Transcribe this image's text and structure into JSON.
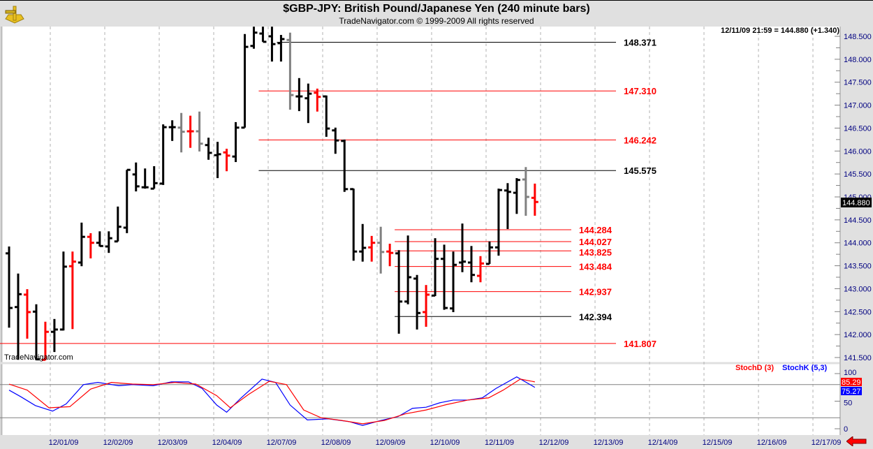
{
  "header": {
    "title": "$GBP-JPY:  British Pound/Japanese Yen  (240 minute bars)",
    "subtitle": "TradeNavigator.com © 1999-2009 All rights reserved",
    "logo": "sextant-logo"
  },
  "readout": "12/11/09 21:59 = 144.880 (+1.340)",
  "watermark": "TradeNavigator.com",
  "last_price_label": "144.880",
  "colors": {
    "up": "#000000",
    "red": "#ff0000",
    "gray": "#808080",
    "stochD": "#ff0000",
    "stochK": "#0000ff",
    "axis_text": "#000080"
  },
  "chart_data": [
    {
      "type": "ohlc",
      "title": "$GBP-JPY",
      "ylim": [
        141.5,
        148.5
      ],
      "yticks": [
        "148.500",
        "148.000",
        "147.500",
        "147.000",
        "146.500",
        "146.000",
        "145.500",
        "145.000",
        "144.500",
        "144.000",
        "143.500",
        "143.000",
        "142.500",
        "142.000",
        "141.500"
      ],
      "xticks": [
        "12/01/09",
        "12/02/09",
        "12/03/09",
        "12/04/09",
        "12/07/09",
        "12/08/09",
        "12/09/09",
        "12/10/09",
        "12/11/09",
        "12/12/09",
        "12/13/09",
        "12/14/09",
        "12/15/09",
        "12/16/09",
        "12/17/09"
      ],
      "bars_per_day": 6,
      "bars": [
        [
          143.77,
          143.92,
          142.15,
          142.58,
          "b"
        ],
        [
          142.6,
          143.33,
          141.45,
          142.88,
          "b"
        ],
        [
          142.87,
          142.99,
          141.91,
          142.49,
          "r"
        ],
        [
          142.5,
          142.66,
          141.44,
          141.46,
          "b"
        ],
        [
          141.45,
          142.28,
          141.44,
          142.06,
          "r"
        ],
        [
          142.06,
          142.34,
          141.62,
          142.11,
          "b"
        ],
        [
          142.11,
          143.81,
          142.09,
          143.48,
          "b"
        ],
        [
          143.49,
          143.81,
          142.12,
          143.59,
          "r"
        ],
        [
          143.57,
          144.44,
          143.49,
          144.13,
          "b"
        ],
        [
          144.13,
          144.21,
          143.66,
          144.0,
          "r"
        ],
        [
          144.0,
          144.25,
          143.92,
          143.93,
          "b"
        ],
        [
          143.92,
          144.25,
          143.78,
          144.1,
          "b"
        ],
        [
          144.03,
          144.79,
          144.03,
          144.35,
          "b"
        ],
        [
          144.33,
          145.59,
          144.21,
          145.59,
          "b"
        ],
        [
          145.49,
          145.75,
          145.12,
          145.23,
          "b"
        ],
        [
          145.21,
          145.62,
          145.18,
          145.21,
          "b"
        ],
        [
          145.18,
          145.67,
          145.18,
          145.3,
          "b"
        ],
        [
          145.29,
          146.58,
          145.26,
          146.52,
          "b"
        ],
        [
          146.52,
          146.67,
          146.22,
          146.52,
          "b"
        ],
        [
          146.51,
          146.83,
          145.97,
          146.42,
          "g"
        ],
        [
          146.43,
          146.77,
          146.07,
          146.43,
          "r"
        ],
        [
          146.43,
          146.86,
          145.99,
          146.16,
          "g"
        ],
        [
          146.13,
          146.29,
          145.81,
          145.96,
          "b"
        ],
        [
          145.91,
          146.2,
          145.41,
          145.93,
          "b"
        ],
        [
          145.97,
          146.05,
          145.56,
          145.9,
          "r"
        ],
        [
          145.88,
          146.63,
          145.76,
          146.51,
          "b"
        ],
        [
          146.51,
          148.55,
          146.51,
          148.27,
          "b"
        ],
        [
          148.29,
          148.71,
          148.23,
          148.58,
          "b"
        ],
        [
          148.56,
          148.71,
          148.38,
          148.38,
          "b"
        ],
        [
          148.5,
          148.71,
          147.95,
          148.33,
          "b"
        ],
        [
          148.35,
          148.53,
          147.95,
          148.44,
          "b"
        ],
        [
          148.42,
          148.58,
          146.9,
          147.22,
          "g"
        ],
        [
          147.19,
          147.59,
          146.87,
          147.19,
          "b"
        ],
        [
          147.15,
          147.47,
          146.61,
          147.25,
          "b"
        ],
        [
          147.27,
          147.36,
          146.86,
          147.18,
          "r"
        ],
        [
          147.19,
          147.21,
          146.31,
          146.49,
          "b"
        ],
        [
          146.45,
          146.51,
          145.94,
          146.23,
          "b"
        ],
        [
          146.22,
          146.25,
          145.11,
          145.17,
          "b"
        ],
        [
          145.17,
          145.18,
          143.61,
          143.81,
          "b"
        ],
        [
          143.81,
          144.41,
          143.59,
          143.89,
          "b"
        ],
        [
          143.9,
          144.15,
          143.59,
          144.0,
          "r"
        ],
        [
          144.0,
          144.35,
          143.33,
          143.8,
          "g"
        ],
        [
          143.81,
          143.98,
          143.49,
          143.78,
          "r"
        ],
        [
          143.77,
          143.84,
          142.02,
          142.72,
          "b"
        ],
        [
          142.72,
          144.16,
          142.66,
          143.25,
          "b"
        ],
        [
          143.22,
          143.3,
          142.11,
          142.47,
          "b"
        ],
        [
          142.49,
          143.08,
          142.17,
          142.87,
          "r"
        ],
        [
          142.85,
          144.1,
          142.84,
          143.65,
          "b"
        ],
        [
          143.65,
          143.96,
          142.54,
          142.58,
          "b"
        ],
        [
          142.57,
          143.81,
          142.49,
          143.52,
          "b"
        ],
        [
          143.57,
          144.42,
          143.36,
          143.59,
          "b"
        ],
        [
          143.57,
          143.93,
          143.14,
          143.3,
          "b"
        ],
        [
          143.28,
          143.71,
          143.14,
          143.55,
          "r"
        ],
        [
          143.54,
          144.03,
          143.54,
          143.9,
          "b"
        ],
        [
          143.9,
          145.18,
          143.72,
          145.15,
          "b"
        ],
        [
          145.14,
          145.3,
          144.3,
          145.11,
          "b"
        ],
        [
          145.09,
          145.41,
          144.63,
          145.37,
          "b"
        ],
        [
          145.38,
          145.65,
          144.59,
          145.0,
          "g"
        ],
        [
          144.98,
          145.29,
          144.59,
          144.89,
          "r"
        ]
      ],
      "levels": [
        {
          "value": 148.371,
          "label": "148.371",
          "color": "#000000",
          "from_bar": 30,
          "group": 1
        },
        {
          "value": 147.31,
          "label": "147.310",
          "color": "#ff0000",
          "from_bar": 28,
          "group": 1
        },
        {
          "value": 146.242,
          "label": "146.242",
          "color": "#ff0000",
          "from_bar": 28,
          "group": 1
        },
        {
          "value": 145.575,
          "label": "145.575",
          "color": "#000000",
          "from_bar": 28,
          "group": 1
        },
        {
          "value": 144.284,
          "label": "144.284",
          "color": "#ff0000",
          "from_bar": 43,
          "group": 2
        },
        {
          "value": 144.027,
          "label": "144.027",
          "color": "#ff0000",
          "from_bar": 43,
          "group": 2
        },
        {
          "value": 143.825,
          "label": "143.825",
          "color": "#ff0000",
          "from_bar": 43,
          "group": 2
        },
        {
          "value": 143.484,
          "label": "143.484",
          "color": "#ff0000",
          "from_bar": 43,
          "group": 2
        },
        {
          "value": 142.937,
          "label": "142.937",
          "color": "#ff0000",
          "from_bar": 43,
          "group": 2
        },
        {
          "value": 142.394,
          "label": "142.394",
          "color": "#000000",
          "from_bar": 43,
          "group": 2
        },
        {
          "value": 141.807,
          "label": "141.807",
          "color": "#ff0000",
          "from_bar": -1,
          "group": 1
        }
      ]
    },
    {
      "type": "line",
      "title": "Stochastic",
      "ylim": [
        0,
        100
      ],
      "yticks": [
        "100",
        "50",
        "0"
      ],
      "reference_lines": [
        80,
        20
      ],
      "legend": [
        {
          "name": "StochD (3)",
          "color": "#ff0000"
        },
        {
          "name": "StochK (5,3)",
          "color": "#0000ff"
        }
      ],
      "last_values": {
        "D": "85.29",
        "K": "75.27"
      },
      "series": [
        {
          "name": "StochK (5,3)",
          "points": [
            [
              0,
              70
            ],
            [
              1.3,
              58
            ],
            [
              2.9,
              42
            ],
            [
              4.8,
              32
            ],
            [
              6.3,
              45
            ],
            [
              8.2,
              80
            ],
            [
              9.8,
              84
            ],
            [
              12.1,
              78
            ],
            [
              13.6,
              80
            ],
            [
              15.9,
              78
            ],
            [
              17.9,
              85
            ],
            [
              19.8,
              85
            ],
            [
              21.3,
              73
            ],
            [
              22.9,
              43
            ],
            [
              24,
              30
            ],
            [
              25.6,
              56
            ],
            [
              27.9,
              90
            ],
            [
              29.4,
              84
            ],
            [
              31,
              43
            ],
            [
              32.9,
              16
            ],
            [
              35.2,
              18
            ],
            [
              37.5,
              13
            ],
            [
              39,
              6
            ],
            [
              41,
              15
            ],
            [
              42.9,
              22
            ],
            [
              44.5,
              37
            ],
            [
              46,
              39
            ],
            [
              47.5,
              47
            ],
            [
              49,
              52
            ],
            [
              50.6,
              52
            ],
            [
              52.2,
              56
            ],
            [
              53.7,
              73
            ],
            [
              56,
              94
            ],
            [
              58,
              75
            ]
          ]
        },
        {
          "name": "StochD (3)",
          "points": [
            [
              0,
              81
            ],
            [
              2,
              70
            ],
            [
              4.4,
              38
            ],
            [
              6.7,
              40
            ],
            [
              9,
              72
            ],
            [
              11.3,
              84
            ],
            [
              13.6,
              81
            ],
            [
              15.9,
              80
            ],
            [
              18.3,
              84
            ],
            [
              20.6,
              81
            ],
            [
              22.9,
              60
            ],
            [
              24.4,
              38
            ],
            [
              26.4,
              62
            ],
            [
              28.7,
              86
            ],
            [
              30.6,
              80
            ],
            [
              32.5,
              34
            ],
            [
              34.4,
              20
            ],
            [
              36.7,
              15
            ],
            [
              39,
              9
            ],
            [
              41.4,
              15
            ],
            [
              43.7,
              27
            ],
            [
              46,
              34
            ],
            [
              48.3,
              44
            ],
            [
              50.6,
              52
            ],
            [
              52.9,
              56
            ],
            [
              54.5,
              70
            ],
            [
              56.4,
              90
            ],
            [
              58,
              85
            ]
          ]
        }
      ]
    }
  ]
}
